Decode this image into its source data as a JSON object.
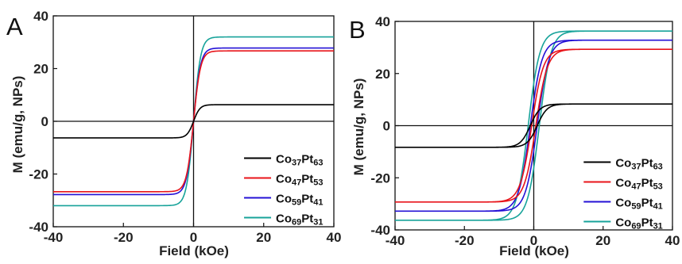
{
  "chart_data": [
    {
      "type": "line",
      "panel_label": "A",
      "xlabel": "Field (kOe)",
      "ylabel": "M (emu/g, NPs)",
      "xlim": [
        -40,
        40
      ],
      "ylim": [
        -40,
        40
      ],
      "xticks": [
        -40,
        -20,
        0,
        20,
        40
      ],
      "yticks": [
        -40,
        -20,
        0,
        20,
        40
      ],
      "legend_position": "bottom-right",
      "series": [
        {
          "name": "Co37Pt63",
          "sub1": "37",
          "sub2": "63",
          "color": "#000000",
          "ms": 6.3,
          "k": 0.55,
          "hc": 0.0
        },
        {
          "name": "Co47Pt53",
          "sub1": "47",
          "sub2": "53",
          "color": "#e8141a",
          "ms": 26.7,
          "k": 0.5,
          "hc": 0.0
        },
        {
          "name": "Co59Pt41",
          "sub1": "59",
          "sub2": "41",
          "color": "#2411d6",
          "ms": 27.8,
          "k": 0.5,
          "hc": 0.0
        },
        {
          "name": "Co69Pt31",
          "sub1": "69",
          "sub2": "31",
          "color": "#17a39a",
          "ms": 32.0,
          "k": 0.5,
          "hc": 0.0
        }
      ]
    },
    {
      "type": "line",
      "panel_label": "B",
      "xlabel": "Field (kOe)",
      "ylabel": "M (emu/g, NPs)",
      "xlim": [
        -40,
        40
      ],
      "ylim": [
        -40,
        40
      ],
      "xticks": [
        -40,
        -20,
        0,
        20,
        40
      ],
      "yticks": [
        -40,
        -20,
        0,
        20,
        40
      ],
      "legend_position": "bottom-right",
      "series": [
        {
          "name": "Co37Pt63",
          "sub1": "37",
          "sub2": "63",
          "color": "#000000",
          "ms": 8.3,
          "k": 0.35,
          "hc": 1.0
        },
        {
          "name": "Co47Pt53",
          "sub1": "47",
          "sub2": "53",
          "color": "#e8141a",
          "ms": 29.3,
          "k": 0.3,
          "hc": 0.6
        },
        {
          "name": "Co59Pt41",
          "sub1": "59",
          "sub2": "41",
          "color": "#2411d6",
          "ms": 32.8,
          "k": 0.3,
          "hc": 1.0
        },
        {
          "name": "Co69Pt31",
          "sub1": "69",
          "sub2": "31",
          "color": "#17a39a",
          "ms": 36.3,
          "k": 0.3,
          "hc": 1.6
        }
      ]
    }
  ]
}
